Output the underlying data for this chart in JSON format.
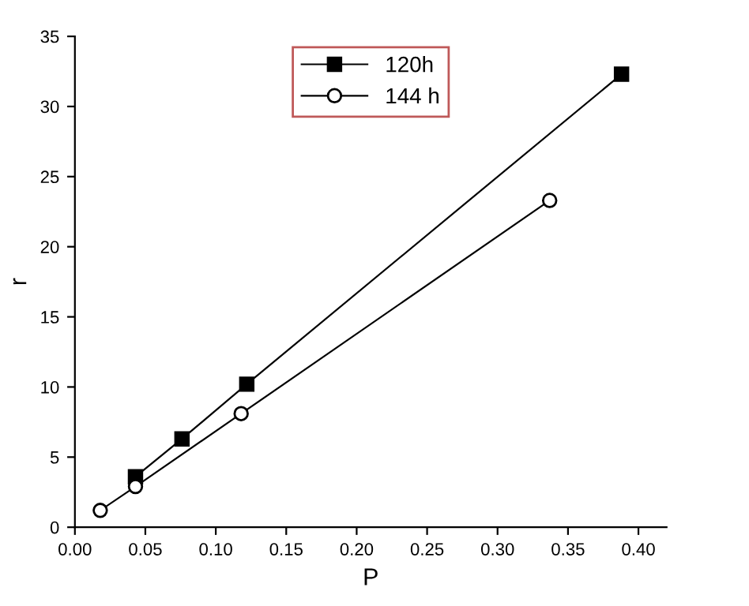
{
  "chart_data": {
    "type": "line",
    "xlabel": "P",
    "ylabel": "r",
    "xlim": [
      0,
      0.42
    ],
    "ylim": [
      0,
      35
    ],
    "xticks": [
      {
        "value": 0,
        "label": "0.00"
      },
      {
        "value": 0.05,
        "label": "0.05"
      },
      {
        "value": 0.1,
        "label": "0.10"
      },
      {
        "value": 0.15,
        "label": "0.15"
      },
      {
        "value": 0.2,
        "label": "0.20"
      },
      {
        "value": 0.25,
        "label": "0.25"
      },
      {
        "value": 0.3,
        "label": "0.30"
      },
      {
        "value": 0.35,
        "label": "0.35"
      },
      {
        "value": 0.4,
        "label": "0.40"
      }
    ],
    "yticks": [
      0,
      5,
      10,
      15,
      20,
      25,
      30,
      35
    ],
    "legend": "top",
    "grid": false,
    "line_style": "solid",
    "series": [
      {
        "name": "120h",
        "color": "#000000",
        "marker": "square",
        "x": [
          0.043,
          0.076,
          0.122,
          0.388
        ],
        "values": [
          3.6,
          6.3,
          10.2,
          32.3
        ]
      },
      {
        "name": "144 h",
        "color": "#000000",
        "marker": "circle",
        "x": [
          0.018,
          0.043,
          0.118,
          0.337
        ],
        "values": [
          1.2,
          2.9,
          8.1,
          23.3
        ]
      }
    ]
  }
}
